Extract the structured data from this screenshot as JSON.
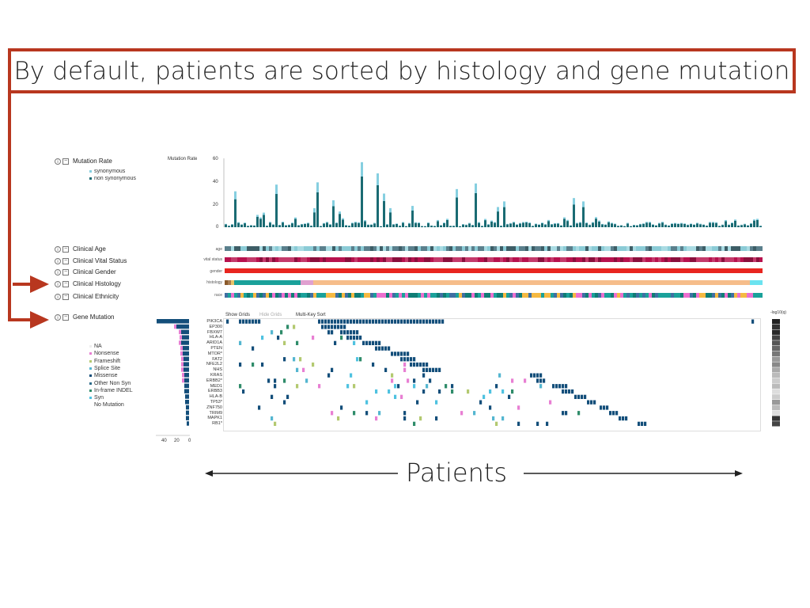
{
  "banner": {
    "text": "By default, patients are sorted by histology and gene mutation"
  },
  "patients_label": "Patients",
  "tracks": [
    {
      "label": "Mutation Rate"
    },
    {
      "label": "Clinical Age"
    },
    {
      "label": "Clinical Vital Status"
    },
    {
      "label": "Clinical Gender"
    },
    {
      "label": "Clinical Histology"
    },
    {
      "label": "Clinical Ethnicity"
    },
    {
      "label": "Gene Mutation"
    }
  ],
  "mutation_rate_legend": [
    {
      "label": "synonymous",
      "color": "#86cfe0"
    },
    {
      "label": "non synonymous",
      "color": "#1a6b73"
    }
  ],
  "mutation_rate_axis": {
    "title": "Mutation Rate",
    "ticks": [
      "60",
      "40",
      "20",
      "0"
    ]
  },
  "clinical_row_titles": [
    "age",
    "vital status",
    "gender",
    "histology",
    "race"
  ],
  "controls": {
    "show_grids": "Show Grids",
    "hide_grids": "Hide Grids",
    "multi_key_sort": "Multi-Key Sort",
    "pval_title": "-log10(q)"
  },
  "genes": [
    "PIK3CA",
    "EP300",
    "FBXW7",
    "HLA-A",
    "ARID1A",
    "PTEN",
    "MTOR*",
    "FAT2",
    "NFE2L2",
    "NHS",
    "KRAS",
    "ERBB2*",
    "MED1",
    "ERBB3",
    "HLA-B",
    "TP53*",
    "ZNF750",
    "TRIM9",
    "MAPK1",
    "RB1*"
  ],
  "mutation_legend": [
    {
      "label": "NA",
      "color": "#eeeeee"
    },
    {
      "label": "Nonsense",
      "color": "#e87fd3"
    },
    {
      "label": "Frameshift",
      "color": "#b3c970"
    },
    {
      "label": "Splice Site",
      "color": "#54b6d0"
    },
    {
      "label": "Missense",
      "color": "#134e7a"
    },
    {
      "label": "Other Non Syn",
      "color": "#2f6d8c"
    },
    {
      "label": "In-frame INDEL",
      "color": "#2f8c6a"
    },
    {
      "label": "Syn",
      "color": "#4fc2e0"
    },
    {
      "label": "No Mutation",
      "color": "#ffffff"
    }
  ],
  "gene_axis_ticks": [
    "40",
    "20",
    "0"
  ],
  "colors": {
    "accent": "#b8371f",
    "bar_dark": "#1a6b73",
    "bar_light": "#86cfe0"
  }
}
